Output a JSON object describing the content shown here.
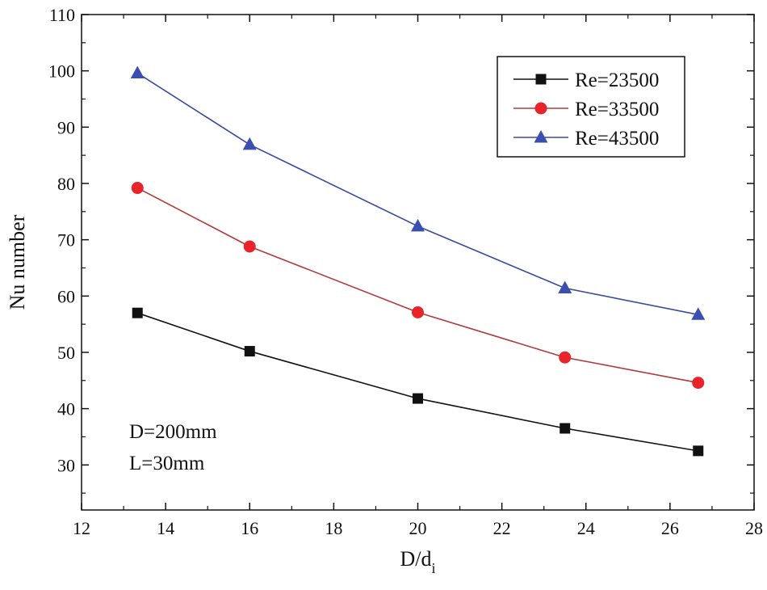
{
  "chart_data": {
    "type": "line",
    "title": "",
    "xlabel": "D/d",
    "xlabel_subscript": "i",
    "ylabel": "Nu number",
    "xlim": [
      12,
      28
    ],
    "ylim": [
      22,
      110
    ],
    "xticks": [
      12,
      14,
      16,
      18,
      20,
      22,
      24,
      26,
      28
    ],
    "yticks": [
      30,
      40,
      50,
      60,
      70,
      80,
      90,
      100,
      110
    ],
    "grid": false,
    "legend_position": "top-right",
    "x": [
      13.33,
      16,
      20,
      23.5,
      26.67
    ],
    "series": [
      {
        "name": "Re=23500",
        "marker": "square",
        "marker_color": "#111111",
        "line_color": "#111111",
        "values": [
          57.0,
          50.2,
          41.8,
          36.5,
          32.5
        ]
      },
      {
        "name": "Re=33500",
        "marker": "circle",
        "marker_color": "#e8232a",
        "line_color": "#b33a3a",
        "values": [
          79.2,
          68.8,
          57.1,
          49.1,
          44.6
        ]
      },
      {
        "name": "Re=43500",
        "marker": "triangle",
        "marker_color": "#3b4fb0",
        "line_color": "#3a4aa0",
        "values": [
          99.6,
          86.9,
          72.4,
          61.4,
          56.7
        ]
      }
    ],
    "annotations": [
      "D=200mm",
      "L=30mm"
    ]
  }
}
